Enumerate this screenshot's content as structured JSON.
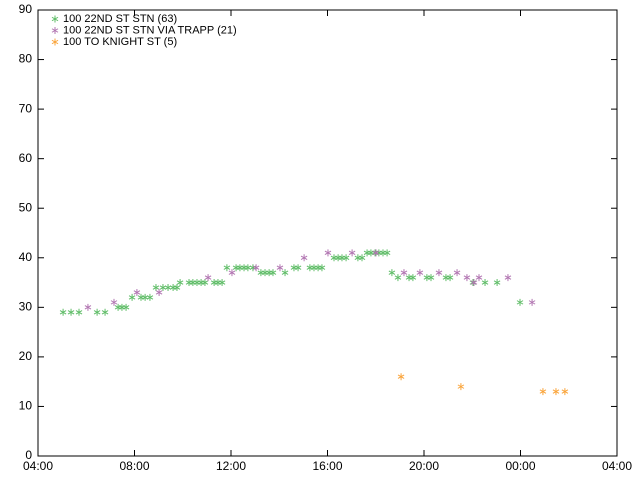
{
  "chart_data": {
    "type": "scatter",
    "xlim": [
      4,
      28
    ],
    "xticks": [
      {
        "value": 4,
        "label": "04:00"
      },
      {
        "value": 8,
        "label": "08:00"
      },
      {
        "value": 12,
        "label": "12:00"
      },
      {
        "value": 16,
        "label": "16:00"
      },
      {
        "value": 20,
        "label": "20:00"
      },
      {
        "value": 24,
        "label": "00:00"
      },
      {
        "value": 28,
        "label": "04:00"
      }
    ],
    "ylim": [
      0,
      90
    ],
    "yticks": [
      0,
      10,
      20,
      30,
      40,
      50,
      60,
      70,
      80,
      90
    ],
    "grid": false,
    "legend": "top-left",
    "series": [
      {
        "name": "100 22ND ST STN (63)",
        "color": "#60bd68",
        "x": [
          5.04,
          5.37,
          5.7,
          6.45,
          6.78,
          7.32,
          7.48,
          7.65,
          7.9,
          8.27,
          8.44,
          8.64,
          8.89,
          9.18,
          9.39,
          9.6,
          9.76,
          9.89,
          10.26,
          10.42,
          10.59,
          10.76,
          10.92,
          11.3,
          11.46,
          11.63,
          11.83,
          12.21,
          12.37,
          12.54,
          12.7,
          12.91,
          13.24,
          13.41,
          13.58,
          13.74,
          14.24,
          14.61,
          14.78,
          15.27,
          15.44,
          15.61,
          15.77,
          16.27,
          16.44,
          16.6,
          16.77,
          17.26,
          17.43,
          17.64,
          17.8,
          17.97,
          18.13,
          18.3,
          18.47,
          18.67,
          18.92,
          19.38,
          19.54,
          20.12,
          20.29,
          20.91,
          21.08,
          22.03,
          22.53,
          23.03,
          23.98
        ],
        "values": [
          29,
          29,
          29,
          29,
          29,
          30,
          30,
          30,
          32,
          32,
          32,
          32,
          34,
          34,
          34,
          34,
          34,
          35,
          35,
          35,
          35,
          35,
          35,
          35,
          35,
          35,
          38,
          38,
          38,
          38,
          38,
          38,
          37,
          37,
          37,
          37,
          37,
          38,
          38,
          38,
          38,
          38,
          38,
          40,
          40,
          40,
          40,
          40,
          40,
          41,
          41,
          41,
          41,
          41,
          41,
          37,
          36,
          36,
          36,
          36,
          36,
          36,
          36,
          35,
          35,
          35,
          31
        ]
      },
      {
        "name": "100 22ND ST STN VIA TRAPP (21)",
        "color": "#b276b2",
        "x": [
          6.07,
          7.15,
          8.1,
          9.02,
          11.05,
          12.04,
          13.04,
          14.03,
          15.03,
          16.02,
          17.02,
          18.01,
          19.17,
          19.83,
          20.62,
          21.37,
          21.78,
          22.07,
          22.28,
          23.48,
          24.48
        ],
        "values": [
          30,
          31,
          33,
          33,
          36,
          37,
          38,
          38,
          40,
          41,
          41,
          41,
          37,
          37,
          37,
          37,
          36,
          35,
          36,
          36,
          31
        ]
      },
      {
        "name": "100 TO KNIGHT ST (5)",
        "color": "#faa43a",
        "x": [
          19.05,
          21.53,
          24.93,
          25.47,
          25.84
        ],
        "values": [
          16,
          14,
          13,
          13,
          13
        ]
      }
    ]
  }
}
